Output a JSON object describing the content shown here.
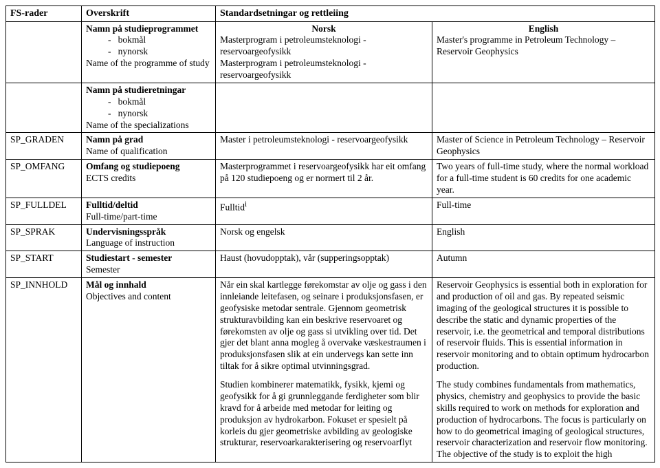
{
  "header": {
    "col1": "FS-rader",
    "col2": "Overskrift",
    "col34": "Standardsetningar og rettleiing"
  },
  "langHead": {
    "norsk": "Norsk",
    "english": "English"
  },
  "row_progname": {
    "labels": {
      "l1": "Namn på studieprogrammet",
      "l2": "bokmål",
      "l3": "nynorsk",
      "l4": "Name of the programme of study"
    },
    "norsk": "Masterprogram i petroleumsteknologi - reservoargeofysikk\nMasterprogram i petroleumsteknologi - reservoargeofysikk",
    "english": "Master's programme in Petroleum Technology – Reservoir Geophysics"
  },
  "row_spec": {
    "labels": {
      "l1": "Namn på studieretningar",
      "l2": "bokmål",
      "l3": "nynorsk",
      "l4": "Name of the specializations"
    }
  },
  "row_graden": {
    "code": "SP_GRADEN",
    "label1": "Namn på grad",
    "label2": "Name of qualification",
    "norsk": "Master i petroleumsteknologi - reservoargeofysikk",
    "english": "Master of Science in Petroleum Technology – Reservoir Geophysics"
  },
  "row_omfang": {
    "code": "SP_OMFANG",
    "label1": "Omfang og studiepoeng",
    "label2": "ECTS credits",
    "norsk": "Masterprogrammet i reservoargeofysikk har eit omfang på 120 studiepoeng og er normert til 2 år.",
    "english": "Two years of full-time study, where the normal workload for a full-time student is 60 credits for one academic year."
  },
  "row_fulldel": {
    "code": "SP_FULLDEL",
    "label1": "Fulltid/deltid",
    "label2": "Full-time/part-time",
    "norsk": "Fulltid",
    "norsk_sup": "i",
    "english": "Full-time"
  },
  "row_sprak": {
    "code": "SP_SPRAK",
    "label1": "Undervisningsspråk",
    "label2": "Language of instruction",
    "norsk": "Norsk og engelsk",
    "english": "English"
  },
  "row_start": {
    "code": "SP_START",
    "label1": "Studiestart - semester",
    "label2": "Semester",
    "norsk": "Haust (hovudopptak), vår (supperingsopptak)",
    "english": "Autumn"
  },
  "row_innhold": {
    "code": "SP_INNHOLD",
    "label1": "Mål og innhald",
    "label2": "Objectives and content",
    "norsk_p1": "Når ein skal kartlegge førekomstar av olje og gass i den innleiande leitefasen, og seinare i produksjonsfasen, er geofysiske metodar sentrale. Gjennom geometrisk strukturavbilding kan ein beskrive reservoaret og førekomsten av olje og gass si utvikling over tid. Det gjer det blant anna mogleg å overvake væskestraumen i produksjonsfasen slik at ein undervegs kan sette inn tiltak for å sikre optimal utvinningsgrad.",
    "norsk_p2": "Studien kombinerer matematikk, fysikk, kjemi og geofysikk for å gi grunnleggande ferdigheter som blir kravd for å arbeide med metodar for leiting og produksjon av hydrokarbon. Fokuset er spesielt på korleis du gjer geometriske avbilding av geologiske strukturar, reservoarkarakterisering og reservoarflyt",
    "english_p1": "Reservoir Geophysics is essential both in exploration for and production of oil and gas. By repeated seismic imaging of the geological structures it is possible to describe the static and dynamic properties of the reservoir, i.e. the geometrical and temporal distributions of reservoir fluids. This is essential information in reservoir monitoring and to obtain optimum hydrocarbon production.",
    "english_p2": "The study combines fundamentals from mathematics, physics, chemistry and geophysics to provide the basic skills required to work on methods for exploration and production of hydrocarbons. The focus is particularly on how to do geometrical imaging of geological structures, reservoir characterization and reservoir flow monitoring. The objective of the study is to exploit the high"
  }
}
